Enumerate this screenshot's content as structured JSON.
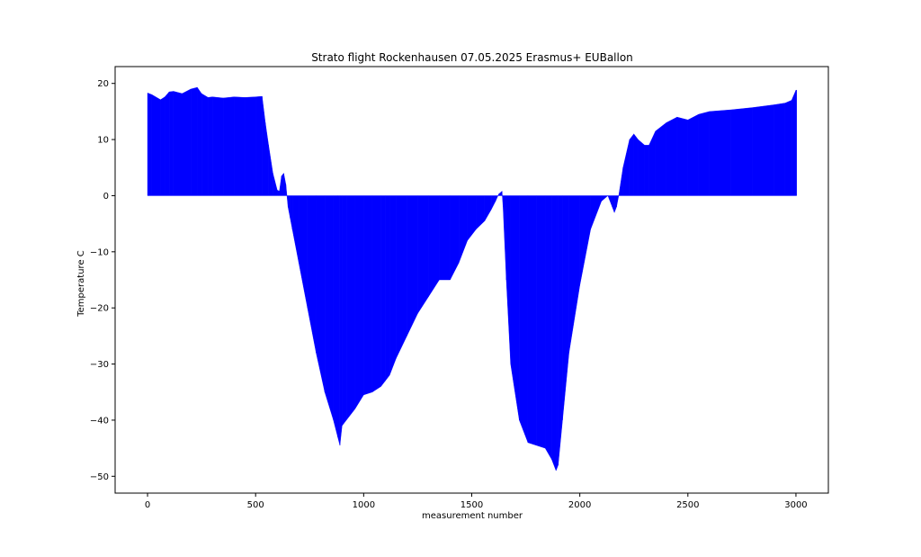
{
  "chart_data": {
    "type": "bar",
    "title": "Strato flight Rockenhausen 07.05.2025 Erasmus+ EUBallon",
    "xlabel": "measurement number",
    "ylabel": "Temperature C",
    "xlim": [
      -150,
      3150
    ],
    "ylim": [
      -53,
      23
    ],
    "xticks": [
      0,
      500,
      1000,
      1500,
      2000,
      2500,
      3000
    ],
    "yticks": [
      20,
      10,
      0,
      -10,
      -20,
      -30,
      -40,
      -50
    ],
    "xtick_labels": [
      "0",
      "500",
      "1000",
      "1500",
      "2000",
      "2500",
      "3000"
    ],
    "ytick_labels": [
      "20",
      "10",
      "0",
      "−10",
      "−20",
      "−30",
      "−40",
      "−50"
    ],
    "grid": false,
    "bar_color": "#0000ff",
    "series": [
      {
        "x": [
          0,
          20,
          60,
          80,
          100,
          120,
          160,
          200,
          230,
          250,
          280,
          300,
          350,
          400,
          450,
          500,
          530,
          545,
          560,
          580,
          600,
          610,
          620,
          630,
          640,
          650,
          660,
          670,
          700,
          740,
          780,
          820,
          860,
          880,
          890,
          900,
          920,
          960,
          1000,
          1040,
          1080,
          1100,
          1120,
          1150,
          1200,
          1250,
          1300,
          1350,
          1400,
          1440,
          1480,
          1520,
          1560,
          1590,
          1610,
          1625,
          1640,
          1645,
          1660,
          1680,
          1720,
          1760,
          1800,
          1840,
          1870,
          1890,
          1900,
          1920,
          1950,
          2000,
          2050,
          2100,
          2130,
          2150,
          2160,
          2170,
          2180,
          2200,
          2230,
          2250,
          2270,
          2300,
          2320,
          2350,
          2400,
          2450,
          2500,
          2550,
          2600,
          2700,
          2800,
          2900,
          2950,
          2980,
          3000
        ],
        "y": [
          18.3,
          18.0,
          17.1,
          17.6,
          18.5,
          18.6,
          18.2,
          19.0,
          19.3,
          18.2,
          17.5,
          17.6,
          17.4,
          17.6,
          17.5,
          17.6,
          17.7,
          13.0,
          9.0,
          4.0,
          1.0,
          0.8,
          3.5,
          4.0,
          2.0,
          -2.0,
          -4.0,
          -6.0,
          -12.0,
          -20.0,
          -28.0,
          -35.0,
          -40.0,
          -43.0,
          -44.5,
          -41.0,
          -40.0,
          -38.0,
          -35.5,
          -35.0,
          -34.0,
          -33.0,
          -32.0,
          -29.0,
          -25.0,
          -21.0,
          -18.0,
          -15.0,
          -15.0,
          -12.0,
          -8.0,
          -6.0,
          -4.5,
          -2.5,
          -1.0,
          0.3,
          0.8,
          -2.0,
          -15.0,
          -30.0,
          -40.0,
          -44.0,
          -44.5,
          -45.0,
          -47.0,
          -49.0,
          -48.0,
          -40.0,
          -28.0,
          -16.0,
          -6.0,
          -1.0,
          0.0,
          -2.0,
          -3.0,
          -2.0,
          0.0,
          5.0,
          10.0,
          11.0,
          10.0,
          9.0,
          9.0,
          11.5,
          13.0,
          14.0,
          13.5,
          14.5,
          15.0,
          15.3,
          15.7,
          16.2,
          16.5,
          17.0,
          18.8
        ]
      }
    ]
  }
}
